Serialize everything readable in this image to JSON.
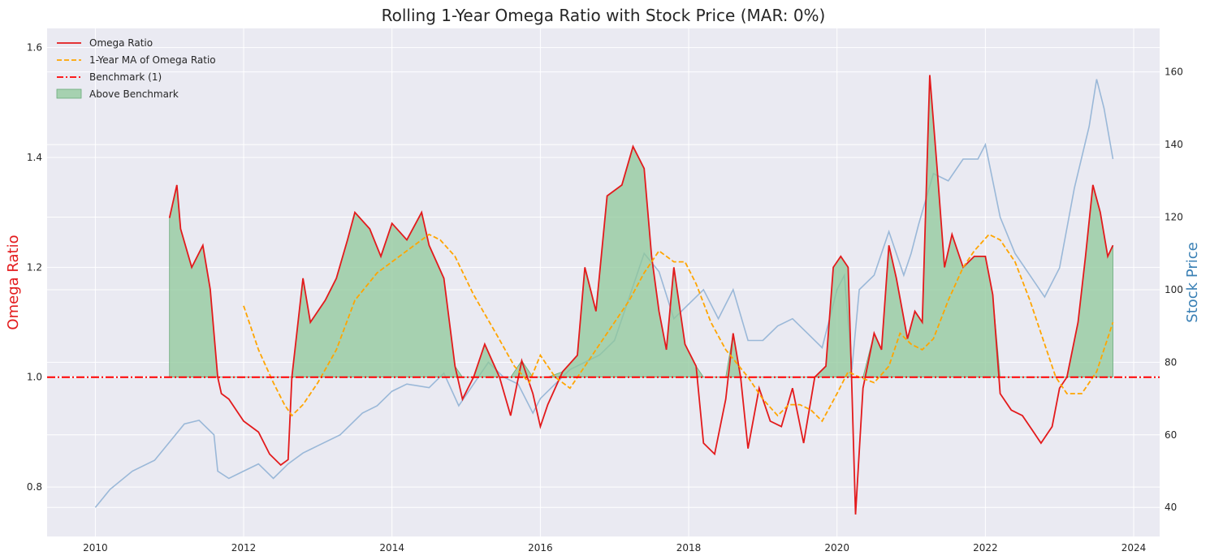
{
  "chart_data": {
    "type": "line",
    "title": "Rolling 1-Year Omega Ratio with Stock Price (MAR: 0%)",
    "xlabel": "",
    "ylabel_left": "Omega Ratio",
    "ylabel_right": "Stock Price",
    "xlim": [
      2009.35,
      2024.35
    ],
    "ylim_left": [
      0.71,
      1.635
    ],
    "ylim_right": [
      32,
      172
    ],
    "x_ticks": [
      2010,
      2012,
      2014,
      2016,
      2018,
      2020,
      2022,
      2024
    ],
    "x_tick_labels": [
      "2010",
      "2012",
      "2014",
      "2016",
      "2018",
      "2020",
      "2022",
      "2024"
    ],
    "y_left_ticks": [
      0.8,
      1.0,
      1.2,
      1.4,
      1.6
    ],
    "y_left_tick_labels": [
      "0.8",
      "1.0",
      "1.2",
      "1.4",
      "1.6"
    ],
    "y_right_ticks": [
      40,
      60,
      80,
      100,
      120,
      140,
      160
    ],
    "y_right_tick_labels": [
      "40",
      "60",
      "80",
      "100",
      "120",
      "140",
      "160"
    ],
    "grid": true,
    "legend_position": "top-left",
    "benchmark": 1.0,
    "colors": {
      "omega": "#e31a1c",
      "ma": "#ffa500",
      "benchmark": "#ff0000",
      "fill": "#8fc89a",
      "fill_edge": "#6aaa7a",
      "price": "#9ab8d8",
      "left_label": "#e31a1c",
      "right_label": "#3a80b5",
      "plot_bg": "#eaeaf2",
      "grid": "#ffffff"
    },
    "legend": [
      {
        "label": "Omega Ratio",
        "style": "solid",
        "color": "#e31a1c"
      },
      {
        "label": "1-Year MA of Omega Ratio",
        "style": "dashed",
        "color": "#ffa500"
      },
      {
        "label": "Benchmark (1)",
        "style": "dashdot",
        "color": "#ff0000"
      },
      {
        "label": "Above Benchmark",
        "style": "patch",
        "color": "#8fc89a"
      }
    ],
    "series": [
      {
        "name": "Omega Ratio",
        "axis": "left",
        "x": [
          2011.0,
          2011.1,
          2011.15,
          2011.3,
          2011.45,
          2011.55,
          2011.65,
          2011.7,
          2011.8,
          2012.0,
          2012.2,
          2012.35,
          2012.5,
          2012.6,
          2012.65,
          2012.8,
          2012.9,
          2013.1,
          2013.25,
          2013.4,
          2013.5,
          2013.7,
          2013.85,
          2014.0,
          2014.2,
          2014.4,
          2014.5,
          2014.7,
          2014.85,
          2014.95,
          2015.1,
          2015.25,
          2015.45,
          2015.6,
          2015.75,
          2015.9,
          2016.0,
          2016.1,
          2016.3,
          2016.5,
          2016.6,
          2016.75,
          2016.9,
          2017.1,
          2017.25,
          2017.4,
          2017.5,
          2017.6,
          2017.7,
          2017.8,
          2017.95,
          2018.1,
          2018.2,
          2018.35,
          2018.5,
          2018.6,
          2018.7,
          2018.8,
          2018.95,
          2019.1,
          2019.25,
          2019.4,
          2019.55,
          2019.7,
          2019.85,
          2019.95,
          2020.05,
          2020.15,
          2020.2,
          2020.25,
          2020.35,
          2020.5,
          2020.6,
          2020.7,
          2020.8,
          2020.95,
          2021.05,
          2021.15,
          2021.25,
          2021.35,
          2021.45,
          2021.55,
          2021.7,
          2021.85,
          2022.0,
          2022.1,
          2022.2,
          2022.35,
          2022.5,
          2022.6,
          2022.75,
          2022.9,
          2023.0,
          2023.1,
          2023.25,
          2023.35,
          2023.45,
          2023.55,
          2023.65,
          2023.72
        ],
        "values": [
          1.29,
          1.35,
          1.27,
          1.2,
          1.24,
          1.16,
          1.0,
          0.97,
          0.96,
          0.92,
          0.9,
          0.86,
          0.84,
          0.85,
          1.0,
          1.18,
          1.1,
          1.14,
          1.18,
          1.25,
          1.3,
          1.27,
          1.22,
          1.28,
          1.25,
          1.3,
          1.24,
          1.18,
          1.02,
          0.96,
          1.0,
          1.06,
          1.0,
          0.93,
          1.03,
          0.97,
          0.91,
          0.95,
          1.01,
          1.04,
          1.2,
          1.12,
          1.33,
          1.35,
          1.42,
          1.38,
          1.22,
          1.12,
          1.05,
          1.2,
          1.06,
          1.02,
          0.88,
          0.86,
          0.96,
          1.08,
          1.0,
          0.87,
          0.98,
          0.92,
          0.91,
          0.98,
          0.88,
          1.0,
          1.02,
          1.2,
          1.22,
          1.2,
          0.98,
          0.75,
          0.98,
          1.08,
          1.05,
          1.24,
          1.18,
          1.07,
          1.12,
          1.1,
          1.55,
          1.38,
          1.2,
          1.26,
          1.2,
          1.22,
          1.22,
          1.15,
          0.97,
          0.94,
          0.93,
          0.91,
          0.88,
          0.91,
          0.98,
          1.0,
          1.1,
          1.22,
          1.35,
          1.3,
          1.22,
          1.24
        ]
      },
      {
        "name": "1-Year MA of Omega Ratio",
        "axis": "left",
        "x": [
          2012.0,
          2012.2,
          2012.4,
          2012.55,
          2012.65,
          2012.8,
          2013.0,
          2013.25,
          2013.5,
          2013.8,
          2014.0,
          2014.3,
          2014.5,
          2014.65,
          2014.85,
          2015.1,
          2015.4,
          2015.65,
          2015.85,
          2016.0,
          2016.2,
          2016.4,
          2016.6,
          2016.8,
          2017.0,
          2017.2,
          2017.4,
          2017.6,
          2017.8,
          2017.95,
          2018.1,
          2018.3,
          2018.5,
          2018.8,
          2019.0,
          2019.2,
          2019.35,
          2019.5,
          2019.65,
          2019.8,
          2020.0,
          2020.15,
          2020.3,
          2020.5,
          2020.7,
          2020.85,
          2021.0,
          2021.15,
          2021.3,
          2021.5,
          2021.7,
          2021.85,
          2022.05,
          2022.2,
          2022.4,
          2022.6,
          2022.8,
          2022.95,
          2023.1,
          2023.3,
          2023.5,
          2023.72
        ],
        "values": [
          1.13,
          1.05,
          0.99,
          0.95,
          0.93,
          0.95,
          0.99,
          1.05,
          1.14,
          1.19,
          1.21,
          1.24,
          1.26,
          1.25,
          1.22,
          1.15,
          1.08,
          1.02,
          0.99,
          1.04,
          1.0,
          0.98,
          1.02,
          1.06,
          1.1,
          1.14,
          1.19,
          1.23,
          1.21,
          1.21,
          1.17,
          1.1,
          1.05,
          1.0,
          0.96,
          0.93,
          0.95,
          0.95,
          0.94,
          0.92,
          0.97,
          1.01,
          1.0,
          0.99,
          1.02,
          1.08,
          1.06,
          1.05,
          1.07,
          1.14,
          1.2,
          1.23,
          1.26,
          1.25,
          1.21,
          1.14,
          1.06,
          1.0,
          0.97,
          0.97,
          1.01,
          1.1
        ]
      },
      {
        "name": "Stock Price",
        "axis": "right",
        "x": [
          2010.0,
          2010.2,
          2010.5,
          2010.8,
          2011.0,
          2011.2,
          2011.4,
          2011.6,
          2011.65,
          2011.8,
          2012.0,
          2012.2,
          2012.4,
          2012.6,
          2012.8,
          2013.0,
          2013.3,
          2013.6,
          2013.8,
          2014.0,
          2014.2,
          2014.5,
          2014.7,
          2014.9,
          2015.1,
          2015.3,
          2015.5,
          2015.7,
          2015.9,
          2016.0,
          2016.2,
          2016.4,
          2016.6,
          2016.8,
          2017.0,
          2017.2,
          2017.4,
          2017.6,
          2017.8,
          2018.0,
          2018.2,
          2018.4,
          2018.6,
          2018.8,
          2019.0,
          2019.2,
          2019.4,
          2019.6,
          2019.8,
          2020.0,
          2020.1,
          2020.2,
          2020.3,
          2020.5,
          2020.7,
          2020.9,
          2021.0,
          2021.1,
          2021.3,
          2021.5,
          2021.7,
          2021.9,
          2022.0,
          2022.2,
          2022.4,
          2022.6,
          2022.8,
          2023.0,
          2023.2,
          2023.4,
          2023.5,
          2023.6,
          2023.72
        ],
        "values": [
          40,
          45,
          50,
          53,
          58,
          63,
          64,
          60,
          50,
          48,
          50,
          52,
          48,
          52,
          55,
          57,
          60,
          66,
          68,
          72,
          74,
          73,
          77,
          68,
          74,
          80,
          76,
          74,
          66,
          70,
          74,
          78,
          80,
          82,
          86,
          98,
          110,
          105,
          92,
          96,
          100,
          92,
          100,
          86,
          86,
          90,
          92,
          88,
          84,
          100,
          104,
          78,
          100,
          104,
          116,
          104,
          110,
          118,
          132,
          130,
          136,
          136,
          140,
          120,
          110,
          104,
          98,
          106,
          128,
          145,
          158,
          150,
          136
        ]
      }
    ]
  }
}
